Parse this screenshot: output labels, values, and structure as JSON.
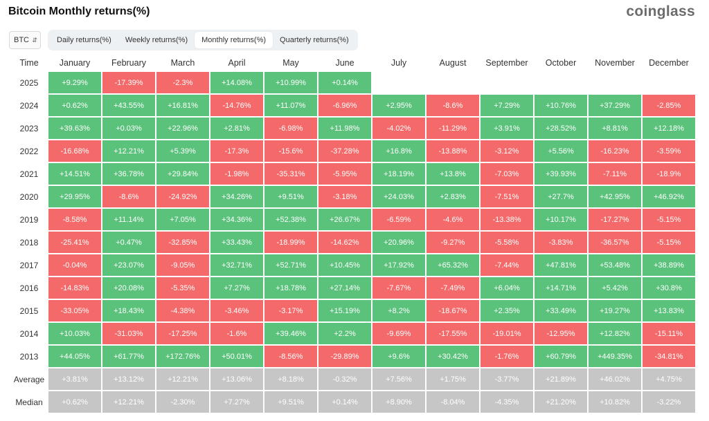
{
  "header": {
    "title": "Bitcoin Monthly returns(%)",
    "brand": "coinglass"
  },
  "asset_select": {
    "value": "BTC"
  },
  "tabs": [
    {
      "label": "Daily returns(%)",
      "active": false
    },
    {
      "label": "Weekly returns(%)",
      "active": false
    },
    {
      "label": "Monthly returns(%)",
      "active": true
    },
    {
      "label": "Quarterly returns(%)",
      "active": false
    }
  ],
  "colors": {
    "positive": "#5bc27c",
    "negative": "#f46a6a",
    "summary": "#c6c6c6"
  },
  "table": {
    "corner": "Time",
    "months": [
      "January",
      "February",
      "March",
      "April",
      "May",
      "June",
      "July",
      "August",
      "September",
      "October",
      "November",
      "December"
    ],
    "rows": [
      {
        "year": "2025",
        "values": [
          "+9.29%",
          "-17.39%",
          "-2.3%",
          "+14.08%",
          "+10.99%",
          "+0.14%",
          "",
          "",
          "",
          "",
          "",
          ""
        ]
      },
      {
        "year": "2024",
        "values": [
          "+0.62%",
          "+43.55%",
          "+16.81%",
          "-14.76%",
          "+11.07%",
          "-6.96%",
          "+2.95%",
          "-8.6%",
          "+7.29%",
          "+10.76%",
          "+37.29%",
          "-2.85%"
        ]
      },
      {
        "year": "2023",
        "values": [
          "+39.63%",
          "+0.03%",
          "+22.96%",
          "+2.81%",
          "-6.98%",
          "+11.98%",
          "-4.02%",
          "-11.29%",
          "+3.91%",
          "+28.52%",
          "+8.81%",
          "+12.18%"
        ]
      },
      {
        "year": "2022",
        "values": [
          "-16.68%",
          "+12.21%",
          "+5.39%",
          "-17.3%",
          "-15.6%",
          "-37.28%",
          "+16.8%",
          "-13.88%",
          "-3.12%",
          "+5.56%",
          "-16.23%",
          "-3.59%"
        ]
      },
      {
        "year": "2021",
        "values": [
          "+14.51%",
          "+36.78%",
          "+29.84%",
          "-1.98%",
          "-35.31%",
          "-5.95%",
          "+18.19%",
          "+13.8%",
          "-7.03%",
          "+39.93%",
          "-7.11%",
          "-18.9%"
        ]
      },
      {
        "year": "2020",
        "values": [
          "+29.95%",
          "-8.6%",
          "-24.92%",
          "+34.26%",
          "+9.51%",
          "-3.18%",
          "+24.03%",
          "+2.83%",
          "-7.51%",
          "+27.7%",
          "+42.95%",
          "+46.92%"
        ]
      },
      {
        "year": "2019",
        "values": [
          "-8.58%",
          "+11.14%",
          "+7.05%",
          "+34.36%",
          "+52.38%",
          "+26.67%",
          "-6.59%",
          "-4.6%",
          "-13.38%",
          "+10.17%",
          "-17.27%",
          "-5.15%"
        ]
      },
      {
        "year": "2018",
        "values": [
          "-25.41%",
          "+0.47%",
          "-32.85%",
          "+33.43%",
          "-18.99%",
          "-14.62%",
          "+20.96%",
          "-9.27%",
          "-5.58%",
          "-3.83%",
          "-36.57%",
          "-5.15%"
        ]
      },
      {
        "year": "2017",
        "values": [
          "-0.04%",
          "+23.07%",
          "-9.05%",
          "+32.71%",
          "+52.71%",
          "+10.45%",
          "+17.92%",
          "+65.32%",
          "-7.44%",
          "+47.81%",
          "+53.48%",
          "+38.89%"
        ]
      },
      {
        "year": "2016",
        "values": [
          "-14.83%",
          "+20.08%",
          "-5.35%",
          "+7.27%",
          "+18.78%",
          "+27.14%",
          "-7.67%",
          "-7.49%",
          "+6.04%",
          "+14.71%",
          "+5.42%",
          "+30.8%"
        ]
      },
      {
        "year": "2015",
        "values": [
          "-33.05%",
          "+18.43%",
          "-4.38%",
          "-3.46%",
          "-3.17%",
          "+15.19%",
          "+8.2%",
          "-18.67%",
          "+2.35%",
          "+33.49%",
          "+19.27%",
          "+13.83%"
        ]
      },
      {
        "year": "2014",
        "values": [
          "+10.03%",
          "-31.03%",
          "-17.25%",
          "-1.6%",
          "+39.46%",
          "+2.2%",
          "-9.69%",
          "-17.55%",
          "-19.01%",
          "-12.95%",
          "+12.82%",
          "-15.11%"
        ]
      },
      {
        "year": "2013",
        "values": [
          "+44.05%",
          "+61.77%",
          "+172.76%",
          "+50.01%",
          "-8.56%",
          "-29.89%",
          "+9.6%",
          "+30.42%",
          "-1.76%",
          "+60.79%",
          "+449.35%",
          "-34.81%"
        ]
      }
    ],
    "summary_rows": [
      {
        "label": "Average",
        "values": [
          "+3.81%",
          "+13.12%",
          "+12.21%",
          "+13.06%",
          "+8.18%",
          "-0.32%",
          "+7.56%",
          "+1.75%",
          "-3.77%",
          "+21.89%",
          "+46.02%",
          "+4.75%"
        ]
      },
      {
        "label": "Median",
        "values": [
          "+0.62%",
          "+12.21%",
          "-2.30%",
          "+7.27%",
          "+9.51%",
          "+0.14%",
          "+8.90%",
          "-8.04%",
          "-4.35%",
          "+21.20%",
          "+10.82%",
          "-3.22%"
        ]
      }
    ]
  }
}
